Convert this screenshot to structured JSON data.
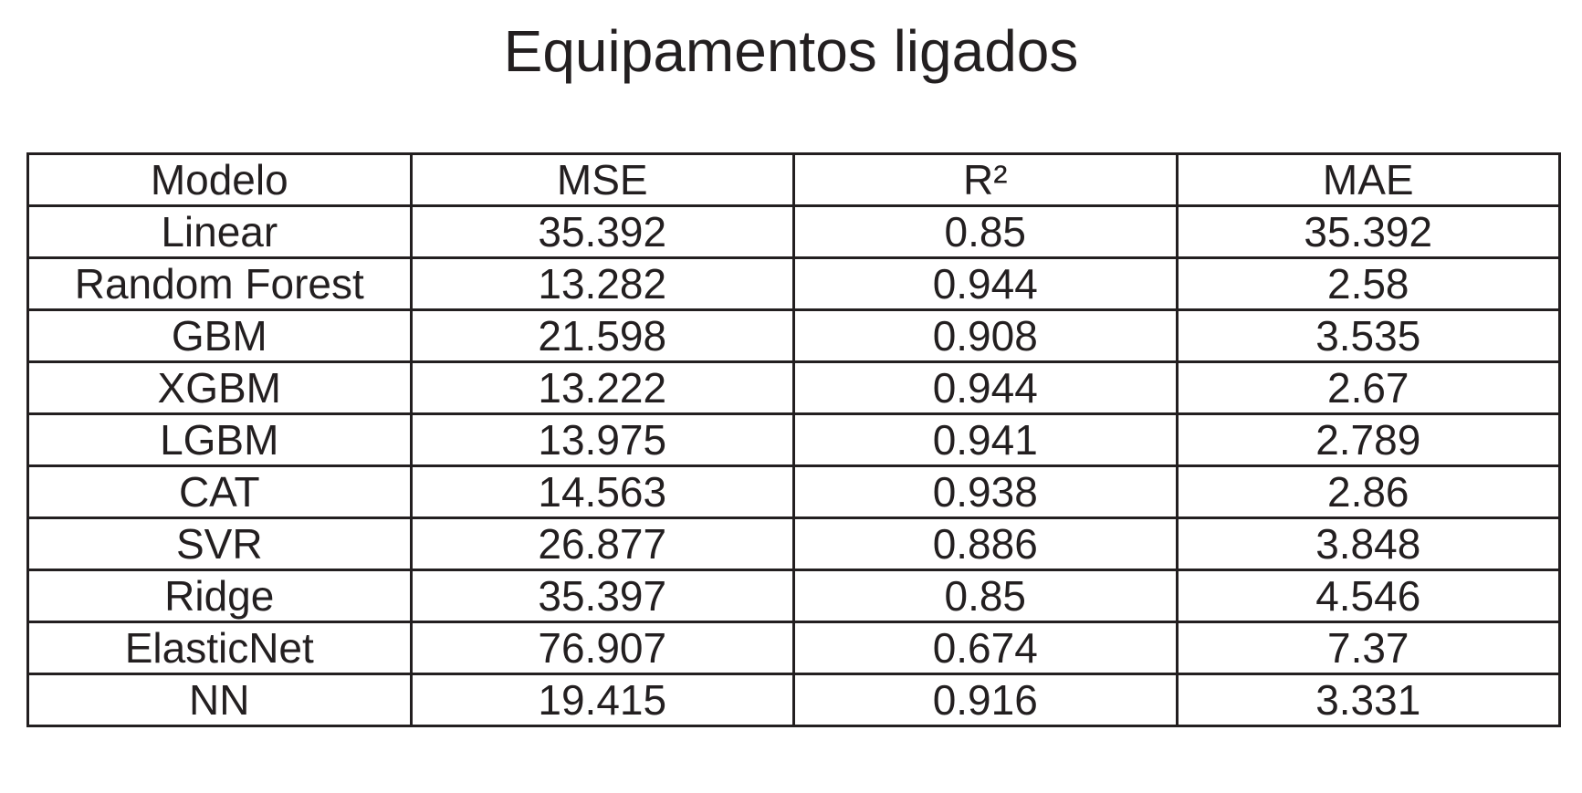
{
  "chart_data": {
    "type": "table",
    "title": "Equipamentos ligados",
    "columns": [
      "Modelo",
      "MSE",
      "R²",
      "MAE"
    ],
    "rows": [
      [
        "Linear",
        "35.392",
        "0.85",
        "35.392"
      ],
      [
        "Random Forest",
        "13.282",
        "0.944",
        "2.58"
      ],
      [
        "GBM",
        "21.598",
        "0.908",
        "3.535"
      ],
      [
        "XGBM",
        "13.222",
        "0.944",
        "2.67"
      ],
      [
        "LGBM",
        "13.975",
        "0.941",
        "2.789"
      ],
      [
        "CAT",
        "14.563",
        "0.938",
        "2.86"
      ],
      [
        "SVR",
        "26.877",
        "0.886",
        "3.848"
      ],
      [
        "Ridge",
        "35.397",
        "0.85",
        "4.546"
      ],
      [
        "ElasticNet",
        "76.907",
        "0.674",
        "7.37"
      ],
      [
        "NN",
        "19.415",
        "0.916",
        "3.331"
      ]
    ]
  }
}
